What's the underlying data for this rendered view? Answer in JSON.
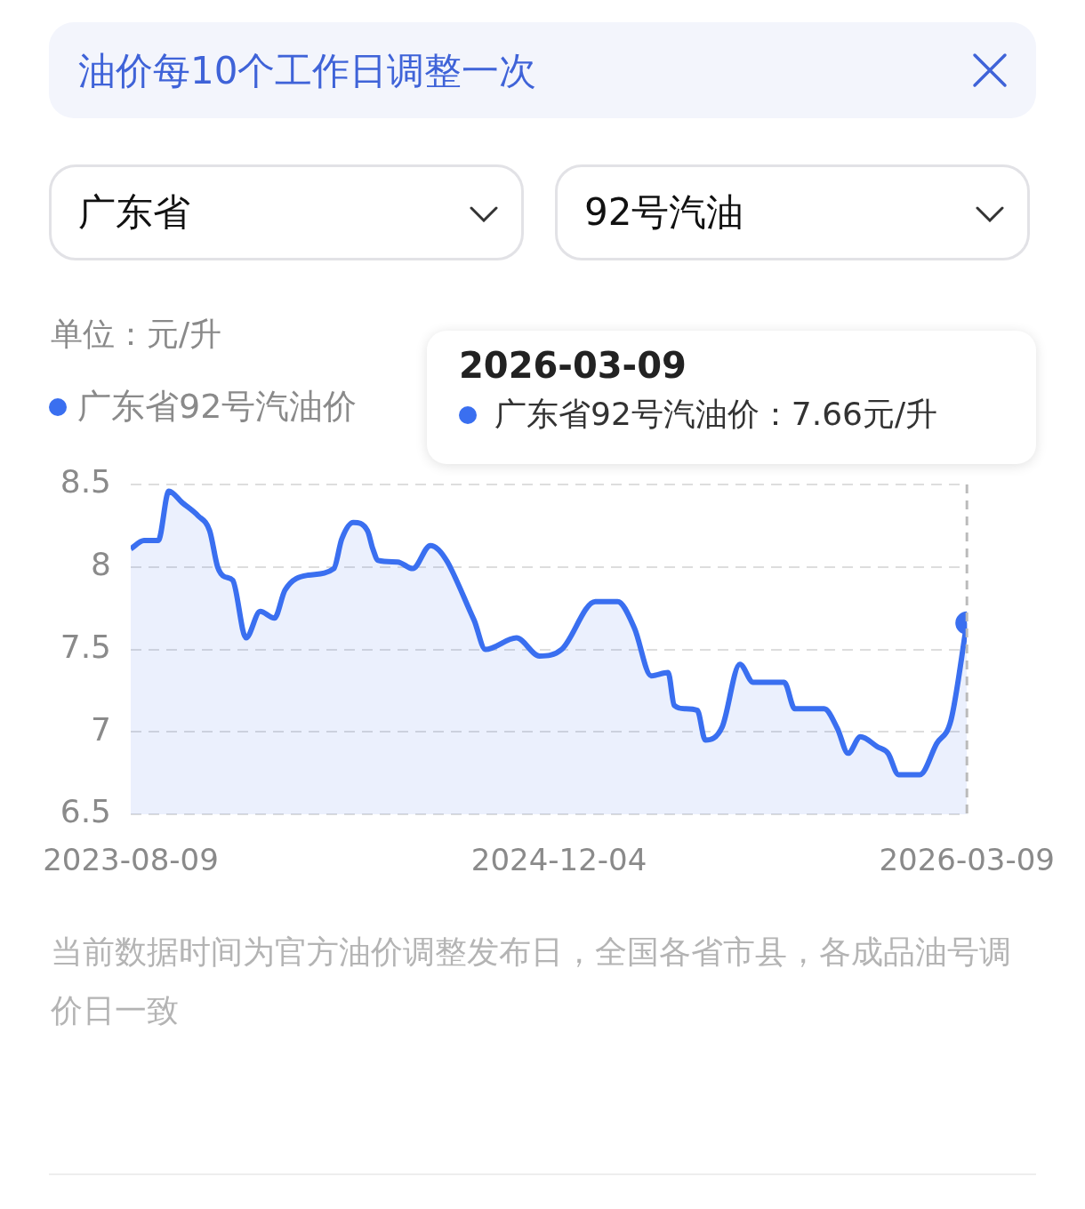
{
  "chart_data": {
    "type": "area",
    "title": "油价每10个工作日调整一次",
    "ylabel": "单位：元/升",
    "annotations": [
      "广东省",
      "92号汽油",
      "当前数据时间为官方油价调整发布日，全国各省市县，各成品油号调价日一致",
      "2026-03-09",
      "广东省92号汽油价：7.66元/升"
    ],
    "x": [
      "2023-08-09",
      "2023-08-24",
      "2023-09-09",
      "2023-09-21",
      "2023-10-06",
      "2023-10-24",
      "2023-11-06",
      "2023-11-15",
      "2023-11-23",
      "2023-12-02",
      "2023-12-17",
      "2024-01-02",
      "2024-01-18",
      "2024-01-30",
      "2024-02-25",
      "2024-03-25",
      "2024-04-03",
      "2024-04-16",
      "2024-05-02",
      "2024-05-08",
      "2024-05-14",
      "2024-06-05",
      "2024-06-22",
      "2024-07-12",
      "2024-08-30",
      "2024-09-12",
      "2024-10-17",
      "2024-11-12",
      "2024-12-07",
      "2025-01-14",
      "2025-02-08",
      "2025-02-27",
      "2025-03-18",
      "2025-04-06",
      "2025-04-13",
      "2025-04-25",
      "2025-05-09",
      "2025-05-18",
      "2025-06-06",
      "2025-06-26",
      "2025-07-11",
      "2025-08-15",
      "2025-08-27",
      "2025-09-29",
      "2025-10-14",
      "2025-10-26",
      "2025-11-09",
      "2025-11-28",
      "2025-12-10",
      "2025-12-22",
      "2026-01-15",
      "2026-02-03",
      "2026-02-19",
      "2026-03-09"
    ],
    "series": [
      {
        "name": "广东省92号汽油价",
        "color": "#3a6ff0",
        "values": [
          8.11,
          8.16,
          8.16,
          8.46,
          8.39,
          8.31,
          8.22,
          8.0,
          7.94,
          7.92,
          7.57,
          7.73,
          7.69,
          7.86,
          7.95,
          7.99,
          8.17,
          8.27,
          8.22,
          8.11,
          8.04,
          8.03,
          7.99,
          8.13,
          7.68,
          7.5,
          7.57,
          7.46,
          7.5,
          7.79,
          7.79,
          7.63,
          7.34,
          7.36,
          7.16,
          7.14,
          7.13,
          6.95,
          7.03,
          7.41,
          7.3,
          7.3,
          7.14,
          7.14,
          7.02,
          6.87,
          6.97,
          6.91,
          6.87,
          6.74,
          6.74,
          6.93,
          7.07,
          7.66
        ]
      }
    ],
    "xlim": [
      "2023-08-09",
      "2026-03-09"
    ],
    "xticks": [
      "2023-08-09",
      "2024-12-04",
      "2026-03-09"
    ],
    "ylim": [
      6.5,
      8.5
    ],
    "yticks": [
      6.5,
      7,
      7.5,
      8,
      8.5
    ],
    "grid": "y",
    "legend": "top left",
    "marker": "none",
    "line_style": "solid",
    "ref_lines": [
      {
        "axis": "x",
        "value": "2026-03-09",
        "color": "#bbbbbb",
        "line_style": "dashed"
      }
    ]
  }
}
